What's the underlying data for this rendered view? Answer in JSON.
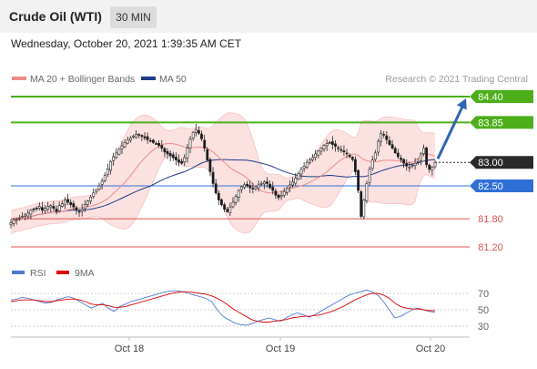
{
  "header": {
    "title": "Crude Oil (WTI)",
    "timeframe": "30 MIN"
  },
  "timestamp": "Wednesday, October 20, 2021 1:39:35 AM CET",
  "legend": {
    "bollinger_label": "MA 20 + Bollinger Bands",
    "ma50_label": "MA 50",
    "copyright": "Research © 2021 Trading Central"
  },
  "colors": {
    "up_candle": "#ffffff",
    "down_candle": "#1a1a1a",
    "bollinger": "#f08a8a",
    "bollinger_fill": "#fbd4d4",
    "ma50": "#1f3c88",
    "resistance": "#4caf1a",
    "pivot": "#2a2a2a",
    "support_blue": "#2f6fd6",
    "support_red": "#e05050",
    "arrow": "#2f64b4",
    "rsi": "#4d78d6",
    "rsi_ma": "#e00000"
  },
  "chart_data": [
    {
      "type": "candlestick",
      "title": "Crude Oil (WTI)",
      "timeframe": "30 MIN",
      "ylim": [
        81.0,
        84.55
      ],
      "x_ticks": [
        "Oct 18",
        "Oct 19",
        "Oct 20"
      ],
      "key_levels": [
        {
          "label": "84.40",
          "value": 84.4,
          "kind": "resistance"
        },
        {
          "label": "83.85",
          "value": 83.85,
          "kind": "resistance"
        },
        {
          "label": "83.00",
          "value": 83.0,
          "kind": "pivot"
        },
        {
          "label": "82.50",
          "value": 82.5,
          "kind": "support_blue"
        },
        {
          "label": "81.80",
          "value": 81.8,
          "kind": "support"
        },
        {
          "label": "81.20",
          "value": 81.2,
          "kind": "support"
        }
      ],
      "arrow": {
        "from": 83.0,
        "to": 84.4,
        "direction": "up"
      },
      "close_series": [
        81.72,
        81.78,
        81.8,
        81.82,
        81.85,
        81.88,
        81.92,
        81.98,
        82.0,
        82.02,
        82.06,
        81.98,
        82.02,
        82.06,
        82.08,
        82.02,
        81.95,
        82.08,
        82.12,
        82.2,
        82.15,
        82.1,
        82.05,
        81.98,
        81.94,
        82.0,
        82.1,
        82.18,
        82.26,
        82.35,
        82.42,
        82.5,
        82.6,
        82.72,
        82.86,
        83.02,
        83.12,
        83.2,
        83.28,
        83.35,
        83.42,
        83.48,
        83.52,
        83.56,
        83.6,
        83.58,
        83.55,
        83.52,
        83.48,
        83.45,
        83.42,
        83.4,
        83.36,
        83.3,
        83.22,
        83.18,
        83.14,
        83.1,
        83.05,
        83.0,
        82.98,
        83.1,
        83.3,
        83.5,
        83.64,
        83.7,
        83.62,
        83.5,
        83.3,
        83.05,
        82.8,
        82.55,
        82.35,
        82.2,
        82.1,
        82.0,
        81.95,
        82.05,
        82.15,
        82.28,
        82.4,
        82.48,
        82.52,
        82.5,
        82.46,
        82.44,
        82.48,
        82.52,
        82.55,
        82.58,
        82.55,
        82.46,
        82.4,
        82.3,
        82.25,
        82.3,
        82.38,
        82.45,
        82.52,
        82.58,
        82.66,
        82.76,
        82.85,
        82.92,
        83.0,
        83.05,
        83.1,
        83.18,
        83.24,
        83.3,
        83.36,
        83.4,
        83.42,
        83.38,
        83.34,
        83.3,
        83.26,
        83.22,
        83.18,
        83.12,
        83.06,
        82.8,
        82.4,
        81.85,
        82.2,
        82.55,
        82.85,
        83.05,
        83.2,
        83.45,
        83.62,
        83.58,
        83.48,
        83.38,
        83.3,
        83.2,
        83.12,
        83.06,
        82.98,
        82.92,
        82.9,
        82.94,
        82.98,
        83.02,
        83.18,
        83.3,
        82.95,
        82.85,
        82.9,
        83.0
      ]
    },
    {
      "type": "line",
      "title": "RSI",
      "series": [
        {
          "name": "RSI",
          "values": [
            62,
            63,
            65,
            64,
            62,
            60,
            58,
            59,
            62,
            64,
            66,
            64,
            60,
            56,
            52,
            55,
            58,
            52,
            48,
            54,
            57,
            60,
            62,
            64,
            66,
            68,
            70,
            72,
            73,
            73,
            72,
            70,
            68,
            66,
            64,
            60,
            50,
            42,
            38,
            34,
            32,
            31,
            33,
            36,
            38,
            40,
            38,
            36,
            40,
            44,
            46,
            44,
            41,
            44,
            48,
            52,
            56,
            60,
            64,
            68,
            70,
            72,
            74,
            72,
            68,
            60,
            50,
            40,
            42,
            46,
            50,
            52,
            50,
            48,
            47
          ]
        },
        {
          "name": "9MA",
          "values": [
            60,
            61,
            62,
            62,
            62,
            61,
            60,
            60,
            61,
            62,
            63,
            63,
            62,
            60,
            57,
            56,
            56,
            55,
            53,
            53,
            54,
            56,
            58,
            60,
            62,
            64,
            66,
            68,
            70,
            71,
            72,
            72,
            71,
            70,
            69,
            67,
            64,
            60,
            55,
            50,
            46,
            42,
            38,
            36,
            35,
            35,
            36,
            37,
            38,
            40,
            41,
            42,
            42,
            43,
            44,
            46,
            48,
            51,
            54,
            58,
            62,
            65,
            68,
            70,
            70,
            68,
            64,
            58,
            54,
            52,
            51,
            51,
            50,
            49,
            49
          ]
        }
      ],
      "ylim": [
        20,
        80
      ],
      "y_ticks": [
        "70",
        "50",
        "30"
      ],
      "x_ticks": [
        "Oct 18",
        "Oct 19",
        "Oct 20"
      ]
    }
  ]
}
